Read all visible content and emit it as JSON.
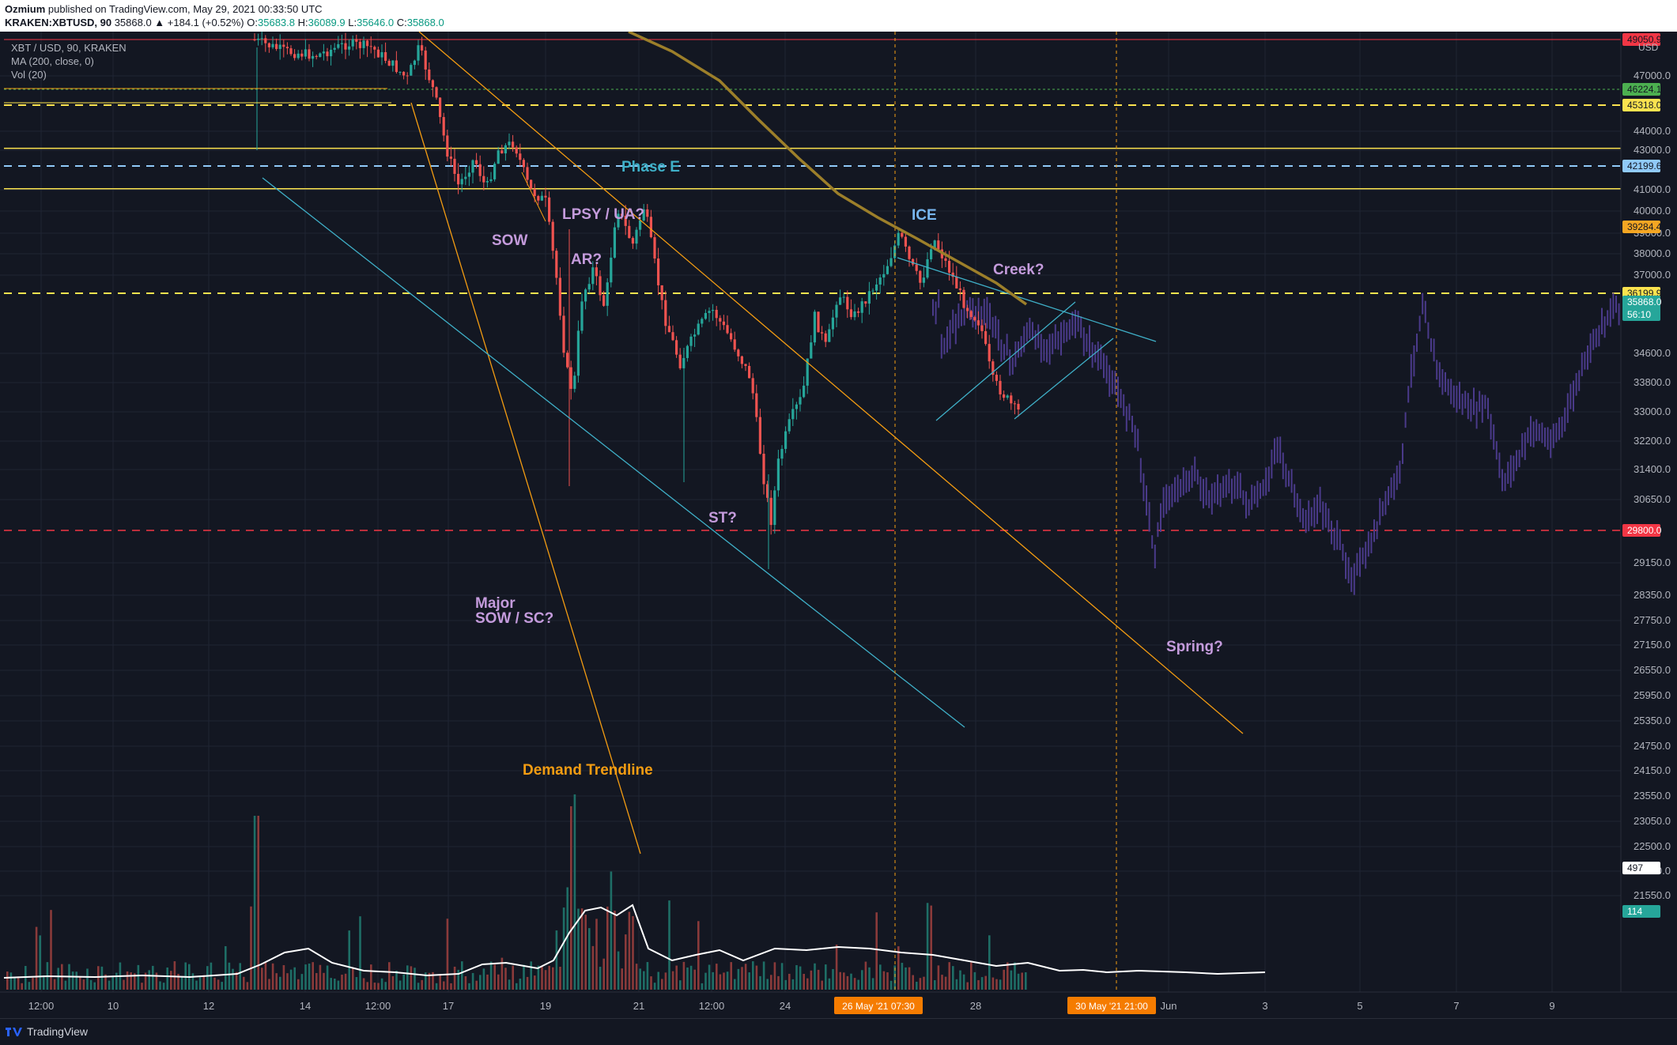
{
  "header": {
    "author": "Ozmium",
    "published": "published on TradingView.com, May 29, 2021 00:33:50 UTC",
    "symbol": "KRAKEN:XBTUSD, 90",
    "change": "35868.0 ▲ +184.1 (+0.52%)",
    "o_label": "O:",
    "o_value": "35683.8",
    "h_label": "H:",
    "h_value": "36089.9",
    "l_label": "L:",
    "l_value": "35646.0",
    "c_label": "C:",
    "c_value": "35868.0"
  },
  "legend": {
    "line1": "XBT / USD, 90, KRAKEN",
    "line2": "MA (200, close, 0)",
    "line3": "Vol (20)"
  },
  "footer": {
    "brand": "TradingView"
  },
  "colors": {
    "background": "#131722",
    "up": "#26a69a",
    "down": "#ef5350",
    "projection": "#4a3a8a",
    "ma": "#9c7f2a",
    "yellow": "#fbe34f",
    "orange": "#f39c12",
    "teal": "#3fb0c8",
    "red": "#f23645",
    "lightblue": "#78b7f0"
  },
  "chart_data": {
    "type": "candlestick",
    "currency": "USD",
    "price_ticks": [
      {
        "label": "47000.0",
        "v": 47000
      },
      {
        "label": "44000.0",
        "v": 44000
      },
      {
        "label": "43000.0",
        "v": 43000
      },
      {
        "label": "41000.0",
        "v": 41000
      },
      {
        "label": "40000.0",
        "v": 40000
      },
      {
        "label": "39000.0",
        "v": 39000
      },
      {
        "label": "38000.0",
        "v": 38000
      },
      {
        "label": "37000.0",
        "v": 37000
      },
      {
        "label": "34600.0",
        "v": 34600
      },
      {
        "label": "33800.0",
        "v": 33800
      },
      {
        "label": "33000.0",
        "v": 33000
      },
      {
        "label": "32200.0",
        "v": 32200
      },
      {
        "label": "31400.0",
        "v": 31400
      },
      {
        "label": "30650.0",
        "v": 30650
      },
      {
        "label": "29150.0",
        "v": 29150
      },
      {
        "label": "28350.0",
        "v": 28350
      },
      {
        "label": "27750.0",
        "v": 27750
      },
      {
        "label": "27150.0",
        "v": 27150
      },
      {
        "label": "26550.0",
        "v": 26550
      },
      {
        "label": "25950.0",
        "v": 25950
      },
      {
        "label": "25350.0",
        "v": 25350
      },
      {
        "label": "24750.0",
        "v": 24750
      },
      {
        "label": "24150.0",
        "v": 24150
      },
      {
        "label": "23550.0",
        "v": 23550
      },
      {
        "label": "23050.0",
        "v": 23050
      },
      {
        "label": "22500.0",
        "v": 22500
      },
      {
        "label": "22020.0",
        "v": 22020
      },
      {
        "label": "21550.0",
        "v": 21550
      }
    ],
    "price_tags": [
      {
        "label": "49050.9",
        "v": 49050.9,
        "bg": "#f23645",
        "fg": "#131722"
      },
      {
        "label": "46224.1",
        "v": 46224.1,
        "bg": "#4caf50",
        "fg": "#131722"
      },
      {
        "label": "45318.0",
        "v": 45318.0,
        "bg": "#fbe34f",
        "fg": "#131722"
      },
      {
        "label": "42199.6",
        "v": 42199.6,
        "bg": "#90caf9",
        "fg": "#131722"
      },
      {
        "label": "39284.4",
        "v": 39284.4,
        "bg": "#f5a623",
        "fg": "#131722"
      },
      {
        "label": "36199.9",
        "v": 36199.9,
        "bg": "#fbe34f",
        "fg": "#131722"
      },
      {
        "label": "35868.0",
        "v": 35868.0,
        "bg": "#26a69a",
        "fg": "#ffffff",
        "sub": "56:10"
      },
      {
        "label": "29800.0",
        "v": 29800.0,
        "bg": "#f23645",
        "fg": "#ffffff"
      },
      {
        "label": "497",
        "v": 22080,
        "bg": "#ffffff",
        "fg": "#131722"
      },
      {
        "label": "114",
        "v": 21500,
        "bg": "#26a69a",
        "fg": "#ffffff"
      }
    ],
    "time_ticks": [
      {
        "label": "12:00",
        "x": 0
      },
      {
        "label": "10",
        "x": 1
      },
      {
        "label": "12",
        "x": 2
      },
      {
        "label": "14",
        "x": 3
      },
      {
        "label": "12:00",
        "x": 4
      },
      {
        "label": "17",
        "x": 5
      },
      {
        "label": "19",
        "x": 6
      },
      {
        "label": "21",
        "x": 7
      },
      {
        "label": "12:00",
        "x": 8
      },
      {
        "label": "24",
        "x": 9
      },
      {
        "label": "28",
        "x": 11
      },
      {
        "label": "Jun",
        "x": 13
      },
      {
        "label": "3",
        "x": 14
      },
      {
        "label": "5",
        "x": 15
      },
      {
        "label": "7",
        "x": 16
      },
      {
        "label": "9",
        "x": 17
      }
    ],
    "time_tags": [
      {
        "label": "26 May '21   07:30",
        "x": 10
      },
      {
        "label": "30 May '21   21:00",
        "x": 12
      }
    ],
    "horizontal_lines": [
      {
        "v": 49050.9,
        "color": "#f23645",
        "dash": "",
        "width": 1
      },
      {
        "v": 46224.1,
        "color": "#4caf50",
        "dash": "3,3",
        "width": 1
      },
      {
        "v": 45318.0,
        "color": "#fbe34f",
        "dash": "10,8",
        "width": 2
      },
      {
        "v": 43100,
        "color": "#fbe34f",
        "dash": "",
        "width": 1.5
      },
      {
        "v": 42199.6,
        "color": "#90caf9",
        "dash": "10,8",
        "width": 2
      },
      {
        "v": 41050,
        "color": "#fbe34f",
        "dash": "",
        "width": 1.5
      },
      {
        "v": 36199.9,
        "color": "#fbe34f",
        "dash": "10,8",
        "width": 2
      },
      {
        "v": 29800.0,
        "color": "#f23645",
        "dash": "10,8",
        "width": 1.5
      }
    ],
    "annotations": [
      {
        "text": "Phase E",
        "color": "#3fb0c8"
      },
      {
        "text": "ICE",
        "color": "#78b7f0"
      },
      {
        "text": "LPSY / UA?",
        "color": "#c49bdc"
      },
      {
        "text": "SOW",
        "color": "#c49bdc"
      },
      {
        "text": "AR?",
        "color": "#c49bdc"
      },
      {
        "text": "Creek?",
        "color": "#c49bdc"
      },
      {
        "text": "ST?",
        "color": "#c49bdc"
      },
      {
        "text": "Major",
        "color": "#c49bdc"
      },
      {
        "text": "SOW / SC?",
        "color": "#c49bdc"
      },
      {
        "text": "Spring?",
        "color": "#c49bdc"
      },
      {
        "text": "Demand Trendline",
        "color": "#f39c12"
      }
    ]
  }
}
